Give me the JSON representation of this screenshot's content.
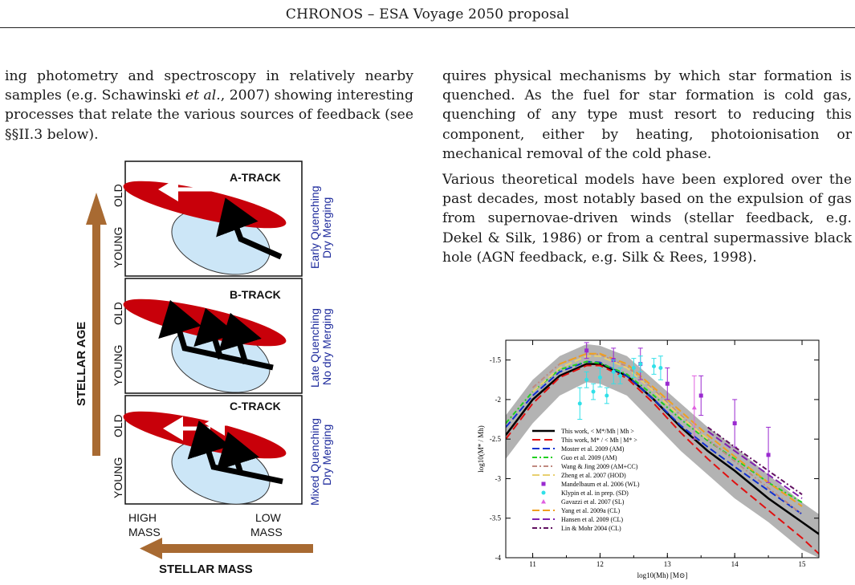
{
  "header": {
    "title": "CHRONOS – ESA Voyage 2050 proposal"
  },
  "left_text": {
    "prefix": "ing photometry and spectroscopy in relatively nearby samples (e.g. Schawinski ",
    "etal": "et al.",
    "suffix": ", 2007) showing interesting processes that relate the various sources of feedback (see §§II.3 below)."
  },
  "right_text": {
    "p1": "quires physical mechanisms by which star formation is quenched. As the fuel for star formation is cold gas, quenching of any type must resort to reducing this component, either by heating, photoionisation or mechanical removal of the cold phase.",
    "p2": "Various theoretical models have been explored over the past decades, most notably based on the expulsion of gas from supernovae-driven winds (stellar feedback, e.g. Dekel & Silk, 1986) or from a central supermassive black hole (AGN feedback, e.g. Silk & Rees, 1998)."
  },
  "tracks_figure": {
    "y_axis_label": "STELLAR AGE",
    "x_axis_label": "STELLAR MASS",
    "x_labels": {
      "high_1": "HIGH",
      "high_2": "MASS",
      "low_1": "LOW",
      "low_2": "MASS"
    },
    "panel_labels": {
      "old": "OLD",
      "young": "YOUNG"
    },
    "panels": [
      {
        "title": "A-TRACK",
        "side_1": "Early Quenching",
        "side_2": "Dry Merging"
      },
      {
        "title": "B-TRACK",
        "side_1": "Late Quenching",
        "side_2": "No dry Merging"
      },
      {
        "title": "C-TRACK",
        "side_1": "Mixed Quenching",
        "side_2": "Dry Merging"
      }
    ],
    "colors": {
      "red_ellipse": "#c8000a",
      "blue_ellipse": "#cce6f7",
      "arrow": "#a86a32",
      "side_text": "#1d2a9c"
    }
  },
  "chart_data": {
    "type": "line",
    "xlabel": "log10(Mh) [M⊙]",
    "ylabel": "log10(M* / Mh)",
    "xlim": [
      10.6,
      15.25
    ],
    "ylim": [
      -4.0,
      -1.25
    ],
    "x_ticks": [
      11,
      12,
      13,
      14,
      15
    ],
    "y_ticks": [
      -1.5,
      -2,
      -2.5,
      -3,
      -3.5,
      -4
    ],
    "x_tick_labels": [
      "11",
      "12",
      "13",
      "14",
      "15"
    ],
    "y_tick_labels": [
      "-1.5",
      "-2",
      "-2.5",
      "-3",
      "-3.5",
      "-4"
    ],
    "band": {
      "x": [
        10.6,
        11.0,
        11.4,
        11.8,
        12.0,
        12.4,
        12.8,
        13.2,
        13.6,
        14.0,
        14.5,
        15.0,
        15.25
      ],
      "upper": [
        -2.2,
        -1.75,
        -1.45,
        -1.3,
        -1.32,
        -1.45,
        -1.75,
        -2.05,
        -2.35,
        -2.6,
        -2.95,
        -3.3,
        -3.45
      ],
      "lower": [
        -2.75,
        -2.3,
        -1.95,
        -1.78,
        -1.8,
        -1.95,
        -2.3,
        -2.65,
        -2.95,
        -3.25,
        -3.55,
        -3.9,
        -4.0
      ]
    },
    "series": [
      {
        "name": "This work, < M*/Mh | Mh >",
        "color": "#000000",
        "dash": "",
        "width": 2.5,
        "x": [
          10.6,
          11.0,
          11.4,
          11.8,
          12.0,
          12.4,
          12.8,
          13.2,
          13.6,
          14.0,
          14.5,
          15.0,
          15.25
        ],
        "y": [
          -2.45,
          -2.0,
          -1.7,
          -1.55,
          -1.55,
          -1.7,
          -2.0,
          -2.35,
          -2.65,
          -2.9,
          -3.25,
          -3.55,
          -3.7
        ]
      },
      {
        "name": "This work, M* / < Mh | M* >",
        "color": "#e01010",
        "dash": "10,5",
        "width": 2,
        "x": [
          10.6,
          11.0,
          11.4,
          11.8,
          12.0,
          12.4,
          12.8,
          13.2,
          13.6,
          14.0,
          14.5,
          15.0,
          15.25
        ],
        "y": [
          -2.5,
          -2.05,
          -1.72,
          -1.57,
          -1.57,
          -1.73,
          -2.05,
          -2.42,
          -2.75,
          -3.05,
          -3.4,
          -3.75,
          -3.95
        ]
      },
      {
        "name": "Moster et al. 2009 (AM)",
        "color": "#1030d0",
        "dash": "9,4",
        "width": 2,
        "x": [
          10.6,
          11.0,
          11.4,
          11.8,
          12.0,
          12.4,
          12.8,
          13.2,
          13.6,
          14.0,
          14.5,
          15.0
        ],
        "y": [
          -2.35,
          -1.95,
          -1.65,
          -1.52,
          -1.53,
          -1.7,
          -2.0,
          -2.33,
          -2.6,
          -2.85,
          -3.15,
          -3.45
        ]
      },
      {
        "name": "Guo et al. 2009 (AM)",
        "color": "#20d020",
        "dash": "6,3,2,3",
        "width": 2,
        "x": [
          10.6,
          11.0,
          11.4,
          11.8,
          12.0,
          12.4,
          12.8,
          13.2,
          13.6,
          14.0,
          14.5,
          15.0
        ],
        "y": [
          -2.3,
          -1.9,
          -1.62,
          -1.52,
          -1.54,
          -1.68,
          -1.95,
          -2.25,
          -2.52,
          -2.75,
          -3.05,
          -3.3
        ]
      },
      {
        "name": "Wang & Jing 2009 (AM+CC)",
        "color": "#c08a80",
        "dash": "6,3,2,3",
        "width": 2,
        "x": [
          11.0,
          11.4,
          11.8,
          12.0,
          12.4,
          12.8,
          13.2,
          13.6,
          14.0,
          14.5,
          15.0
        ],
        "y": [
          -1.85,
          -1.55,
          -1.42,
          -1.43,
          -1.58,
          -1.88,
          -2.2,
          -2.5,
          -2.78,
          -3.12,
          -3.45
        ]
      },
      {
        "name": "Zheng et al. 2007 (HOD)",
        "color": "#e8d070",
        "dash": "9,4",
        "width": 2,
        "x": [
          11.0,
          11.4,
          11.8,
          12.0,
          12.4,
          12.8,
          13.2,
          13.6
        ],
        "y": [
          -1.9,
          -1.6,
          -1.45,
          -1.45,
          -1.6,
          -1.9,
          -2.22,
          -2.5
        ]
      },
      {
        "name": "Yang et al. 2009a (CL)",
        "color": "#f0a020",
        "dash": "9,4",
        "width": 2,
        "x": [
          11.4,
          11.8,
          12.0,
          12.4,
          12.8,
          13.2,
          13.6,
          14.0,
          14.5,
          15.0
        ],
        "y": [
          -1.55,
          -1.42,
          -1.42,
          -1.55,
          -1.85,
          -2.15,
          -2.45,
          -2.72,
          -3.05,
          -3.35
        ]
      },
      {
        "name": "Hansen et al. 2009 (CL)",
        "color": "#8020b0",
        "dash": "9,4",
        "width": 2,
        "x": [
          13.6,
          14.0,
          14.5,
          15.0
        ],
        "y": [
          -2.4,
          -2.65,
          -2.95,
          -3.25
        ]
      },
      {
        "name": "Lin & Mohr 2004 (CL)",
        "color": "#601060",
        "dash": "6,3,2,3",
        "width": 2,
        "x": [
          13.6,
          14.0,
          14.5,
          15.0
        ],
        "y": [
          -2.35,
          -2.6,
          -2.9,
          -3.2
        ]
      }
    ],
    "points": [
      {
        "name": "Mandelbaum et al. 2006 (WL)",
        "color": "#9a2ad0",
        "shape": "square",
        "x": [
          11.8,
          12.2,
          12.6,
          13.0,
          13.5,
          14.0,
          14.5
        ],
        "y": [
          -1.38,
          -1.5,
          -1.55,
          -1.8,
          -1.95,
          -2.3,
          -2.7
        ],
        "err": [
          0.1,
          0.15,
          0.2,
          0.2,
          0.25,
          0.3,
          0.35
        ]
      },
      {
        "name": "Klypin et al. in prep. (SD)",
        "color": "#30e0e8",
        "shape": "circle",
        "x": [
          11.7,
          11.8,
          11.9,
          12.0,
          12.1,
          12.2,
          12.3,
          12.5,
          12.6,
          12.8,
          12.9
        ],
        "y": [
          -2.05,
          -1.75,
          -1.9,
          -1.72,
          -1.95,
          -1.65,
          -1.7,
          -1.6,
          -1.55,
          -1.58,
          -1.6
        ],
        "err": [
          0.2,
          0.1,
          0.1,
          0.12,
          0.1,
          0.15,
          0.1,
          0.12,
          0.1,
          0.1,
          0.15
        ]
      },
      {
        "name": "Gavazzi et al. 2007 (SL)",
        "color": "#e060e0",
        "shape": "triangle",
        "x": [
          13.4
        ],
        "y": [
          -2.1
        ],
        "err": [
          0.4
        ]
      }
    ],
    "legend_position": "lower-left"
  }
}
